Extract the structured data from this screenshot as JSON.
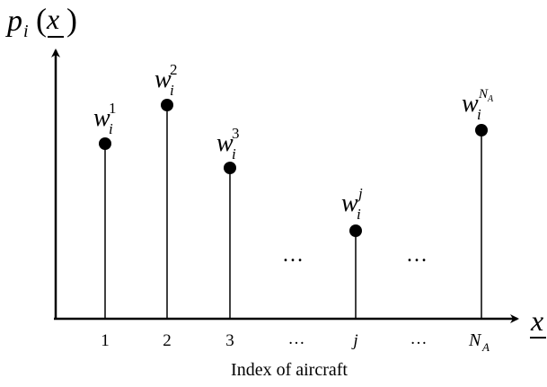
{
  "axes": {
    "y_label": {
      "base": "p",
      "sub": "i",
      "arg": "x"
    },
    "x_label": "x",
    "x_title": "Index of aircraft"
  },
  "stems": [
    {
      "index_label": "1",
      "weight": {
        "base": "w",
        "sub": "i",
        "sup": "1"
      }
    },
    {
      "index_label": "2",
      "weight": {
        "base": "w",
        "sub": "i",
        "sup": "2"
      }
    },
    {
      "index_label": "3",
      "weight": {
        "base": "w",
        "sub": "i",
        "sup": "3"
      }
    },
    {
      "index_label": "j",
      "weight": {
        "base": "w",
        "sub": "i",
        "sup": "j"
      }
    },
    {
      "index_label": "N_A",
      "weight": {
        "base": "w",
        "sub": "i",
        "sup": "N_A"
      }
    }
  ],
  "ellipsis": "…",
  "colors": {
    "ink": "#000000",
    "background": "#ffffff"
  }
}
